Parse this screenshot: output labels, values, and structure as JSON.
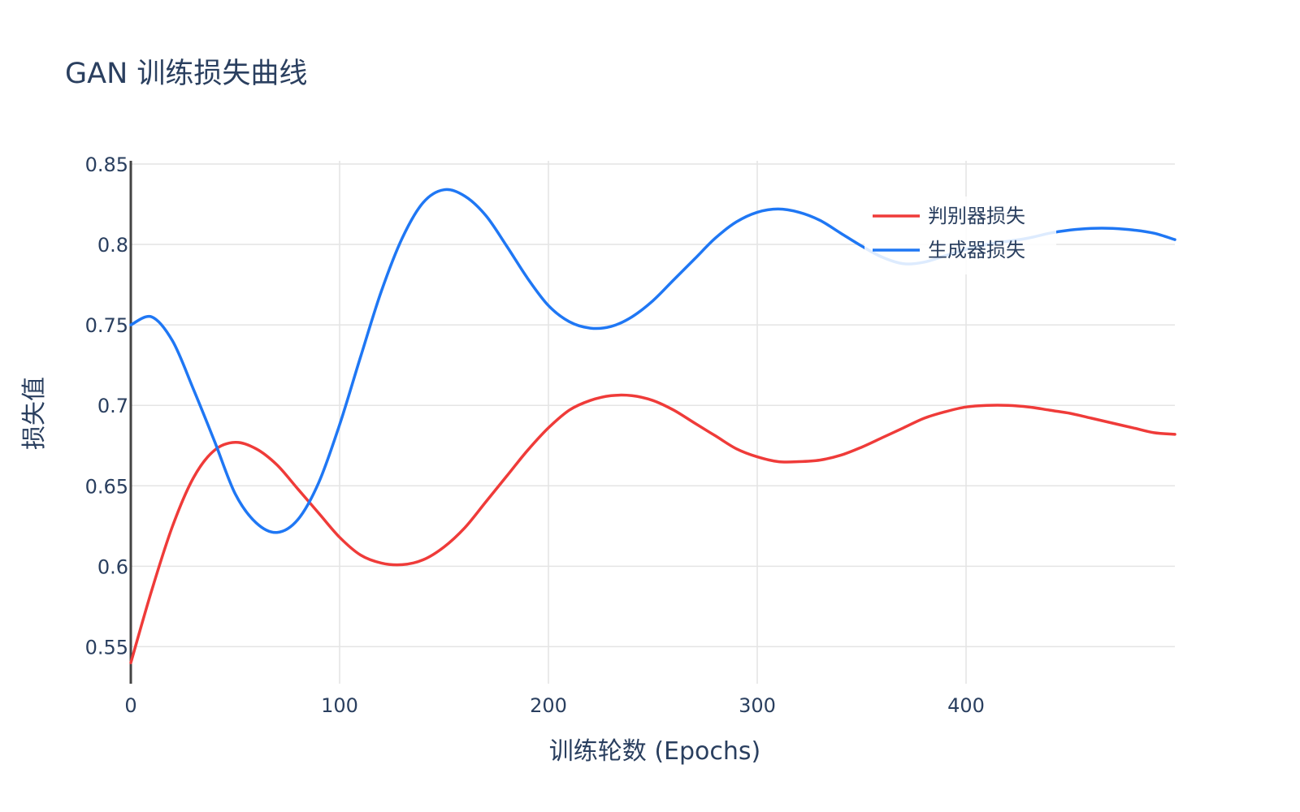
{
  "chart_data": {
    "type": "line",
    "title": "GAN 训练损失曲线",
    "xlabel": "训练轮数 (Epochs)",
    "ylabel": "损失值",
    "xlim": [
      0,
      500
    ],
    "ylim": [
      0.527,
      0.852
    ],
    "x_ticks": [
      0,
      100,
      200,
      300,
      400
    ],
    "x_tick_labels": [
      "0",
      "100",
      "200",
      "300",
      "400"
    ],
    "y_ticks": [
      0.55,
      0.6,
      0.65,
      0.7,
      0.75,
      0.8,
      0.85
    ],
    "y_tick_labels": [
      "0.55",
      "0.6",
      "0.65",
      "0.7",
      "0.75",
      "0.8",
      "0.85"
    ],
    "grid": true,
    "legend_position": "top-right",
    "x": [
      0,
      10,
      20,
      30,
      40,
      50,
      60,
      70,
      80,
      90,
      100,
      110,
      120,
      130,
      140,
      150,
      160,
      170,
      180,
      190,
      200,
      210,
      220,
      230,
      240,
      250,
      260,
      270,
      280,
      290,
      300,
      310,
      320,
      330,
      340,
      350,
      360,
      370,
      380,
      390,
      400,
      410,
      420,
      430,
      440,
      450,
      460,
      470,
      480,
      490,
      500
    ],
    "series": [
      {
        "name": "判别器损失",
        "color": "#ef3b39",
        "values": [
          0.54,
          0.585,
          0.625,
          0.655,
          0.672,
          0.677,
          0.673,
          0.663,
          0.648,
          0.633,
          0.618,
          0.607,
          0.602,
          0.601,
          0.604,
          0.612,
          0.624,
          0.64,
          0.656,
          0.672,
          0.686,
          0.697,
          0.703,
          0.706,
          0.706,
          0.703,
          0.697,
          0.689,
          0.681,
          0.673,
          0.668,
          0.665,
          0.665,
          0.666,
          0.669,
          0.674,
          0.68,
          0.686,
          0.692,
          0.696,
          0.699,
          0.7,
          0.7,
          0.699,
          0.697,
          0.695,
          0.692,
          0.689,
          0.686,
          0.683,
          0.682
        ]
      },
      {
        "name": "生成器损失",
        "color": "#1f77f4",
        "values": [
          0.75,
          0.755,
          0.74,
          0.71,
          0.678,
          0.645,
          0.627,
          0.621,
          0.629,
          0.652,
          0.688,
          0.73,
          0.771,
          0.804,
          0.826,
          0.834,
          0.83,
          0.818,
          0.799,
          0.779,
          0.762,
          0.752,
          0.748,
          0.749,
          0.755,
          0.765,
          0.778,
          0.791,
          0.804,
          0.814,
          0.82,
          0.822,
          0.82,
          0.815,
          0.807,
          0.799,
          0.792,
          0.788,
          0.789,
          0.793,
          0.797,
          0.8,
          0.802,
          0.804,
          0.807,
          0.809,
          0.81,
          0.81,
          0.809,
          0.807,
          0.803
        ]
      }
    ]
  }
}
